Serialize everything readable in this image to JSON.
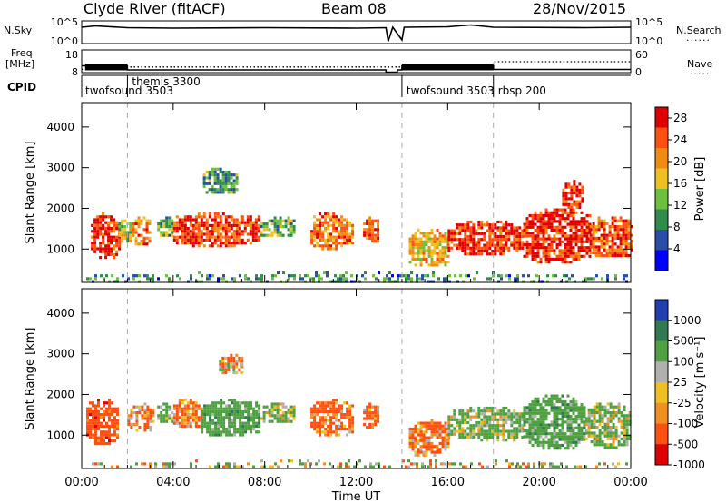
{
  "header": {
    "station": "Clyde River (fitACF)",
    "beam": "Beam 08",
    "date": "28/Nov/2015"
  },
  "noise_panel": {
    "left_label": "N.Sky",
    "right_label": "N.Search",
    "tick_top": "10^5",
    "tick_bottom": "10^0",
    "right_legend_dots": "......"
  },
  "freq_panel": {
    "left_label_1": "Freq",
    "left_label_2": "[MHz]",
    "left_tick_top": "18",
    "left_tick_bottom": "8",
    "right_tick_top": "60",
    "right_tick_bottom": "0",
    "right_label": "Nave",
    "right_legend_dots": "....."
  },
  "cpid": {
    "label": "CPID",
    "segments": [
      {
        "name": "twofsound 3503",
        "start_hour": 0.0
      },
      {
        "name": "themis 3300",
        "start_hour": 2.0
      },
      {
        "name": "twofsound 3503",
        "start_hour": 14.0
      },
      {
        "name": "rbsp 200",
        "start_hour": 18.0
      }
    ]
  },
  "chart_data": [
    {
      "type": "heatmap",
      "name": "power",
      "ylabel": "Slant Range [km]",
      "y_ticks": [
        1000,
        2000,
        3000,
        4000
      ],
      "ylim": [
        180,
        4600
      ],
      "x_tick_labels": [
        "00:00",
        "04:00",
        "08:00",
        "12:00",
        "16:00",
        "20:00",
        "00:00"
      ],
      "xlim_hours": [
        0,
        24
      ],
      "colorbar": {
        "label": "Power [dB]",
        "ticks": [
          "4",
          "8",
          "12",
          "16",
          "20",
          "24",
          "28"
        ],
        "range": [
          0,
          30
        ],
        "colors": [
          "#0000ff",
          "#2a4ea8",
          "#2f8c4a",
          "#6cc040",
          "#f0c020",
          "#f08c10",
          "#ff5010",
          "#e00000"
        ]
      },
      "echo_regions": [
        {
          "t0": 0.4,
          "t1": 1.6,
          "r0": 800,
          "r1": 1900,
          "mean": 27
        },
        {
          "t0": 1.6,
          "t1": 2.2,
          "r0": 1200,
          "r1": 1800,
          "mean": 14
        },
        {
          "t0": 2.2,
          "t1": 3.0,
          "r0": 1100,
          "r1": 1800,
          "mean": 22
        },
        {
          "t0": 3.3,
          "t1": 4.0,
          "r0": 1300,
          "r1": 1800,
          "mean": 12
        },
        {
          "t0": 4.0,
          "t1": 7.7,
          "r0": 1100,
          "r1": 1900,
          "mean": 25
        },
        {
          "t0": 5.3,
          "t1": 6.8,
          "r0": 2400,
          "r1": 3000,
          "mean": 10
        },
        {
          "t0": 7.8,
          "t1": 9.3,
          "r0": 1300,
          "r1": 1800,
          "mean": 12
        },
        {
          "t0": 10.0,
          "t1": 11.8,
          "r0": 1000,
          "r1": 1900,
          "mean": 22
        },
        {
          "t0": 12.3,
          "t1": 13.0,
          "r0": 1200,
          "r1": 1800,
          "mean": 24
        },
        {
          "t0": 14.3,
          "t1": 16.0,
          "r0": 600,
          "r1": 1500,
          "mean": 18
        },
        {
          "t0": 16.0,
          "t1": 19.3,
          "r0": 900,
          "r1": 1700,
          "mean": 26
        },
        {
          "t0": 19.3,
          "t1": 22.2,
          "r0": 700,
          "r1": 2000,
          "mean": 27
        },
        {
          "t0": 21.0,
          "t1": 21.9,
          "r0": 2000,
          "r1": 2700,
          "mean": 27
        },
        {
          "t0": 22.2,
          "t1": 24.0,
          "r0": 800,
          "r1": 1800,
          "mean": 24
        },
        {
          "t0": 0.2,
          "t1": 23.8,
          "r0": 200,
          "r1": 450,
          "mean": 9
        }
      ]
    },
    {
      "type": "heatmap",
      "name": "velocity",
      "ylabel": "Slant Range [km]",
      "y_ticks": [
        1000,
        2000,
        3000,
        4000
      ],
      "ylim": [
        180,
        4600
      ],
      "x_tick_labels": [
        "00:00",
        "04:00",
        "08:00",
        "12:00",
        "16:00",
        "20:00",
        "00:00"
      ],
      "xlim_hours": [
        0,
        24
      ],
      "xlabel": "Time UT",
      "colorbar": {
        "label": "Velocity [m s⁻¹]",
        "ticks": [
          "1000",
          "500",
          "100",
          "25",
          "-25",
          "-100",
          "-500",
          "-1000"
        ],
        "colors": [
          "#2040b0",
          "#2f7a50",
          "#4fa040",
          "#b0b0b0",
          "#f0c020",
          "#f09020",
          "#ff5010",
          "#e00000"
        ]
      },
      "echo_regions": [
        {
          "t0": 0.2,
          "t1": 1.6,
          "r0": 800,
          "r1": 1900,
          "mean": -300
        },
        {
          "t0": 2.0,
          "t1": 3.1,
          "r0": 1100,
          "r1": 1800,
          "mean": -150
        },
        {
          "t0": 3.3,
          "t1": 4.0,
          "r0": 1300,
          "r1": 1800,
          "mean": 200
        },
        {
          "t0": 4.0,
          "t1": 5.2,
          "r0": 1200,
          "r1": 1900,
          "mean": -150
        },
        {
          "t0": 5.2,
          "t1": 7.8,
          "r0": 1000,
          "r1": 1900,
          "mean": 300
        },
        {
          "t0": 6.0,
          "t1": 7.0,
          "r0": 2500,
          "r1": 3000,
          "mean": -100
        },
        {
          "t0": 7.8,
          "t1": 9.3,
          "r0": 1300,
          "r1": 1800,
          "mean": 150
        },
        {
          "t0": 10.0,
          "t1": 11.8,
          "r0": 1000,
          "r1": 1900,
          "mean": -200
        },
        {
          "t0": 12.3,
          "t1": 13.0,
          "r0": 1200,
          "r1": 1800,
          "mean": -200
        },
        {
          "t0": 14.3,
          "t1": 16.0,
          "r0": 500,
          "r1": 1400,
          "mean": -150
        },
        {
          "t0": 16.0,
          "t1": 19.3,
          "r0": 900,
          "r1": 1700,
          "mean": 150
        },
        {
          "t0": 19.3,
          "t1": 22.0,
          "r0": 700,
          "r1": 2000,
          "mean": 300
        },
        {
          "t0": 22.0,
          "t1": 24.0,
          "r0": 700,
          "r1": 1800,
          "mean": 150
        },
        {
          "t0": 0.2,
          "t1": 23.8,
          "r0": 200,
          "r1": 400,
          "mean": 30
        }
      ]
    },
    {
      "type": "line",
      "name": "noise",
      "ylim_log10": [
        0,
        5
      ],
      "series": [
        {
          "points": [
            [
              0,
              3.6
            ],
            [
              0.6,
              3.9
            ],
            [
              2,
              3.5
            ],
            [
              4,
              3.4
            ],
            [
              8,
              3.5
            ],
            [
              12,
              3.4
            ],
            [
              13.3,
              3.5
            ],
            [
              13.4,
              0.5
            ],
            [
              13.6,
              3.6
            ],
            [
              14.0,
              0.8
            ],
            [
              14.1,
              3.6
            ],
            [
              16,
              3.7
            ],
            [
              17,
              4.1
            ],
            [
              18,
              3.6
            ],
            [
              22,
              3.5
            ],
            [
              24,
              3.6
            ]
          ]
        }
      ]
    },
    {
      "type": "line",
      "name": "frequency",
      "ylim": [
        8,
        18
      ],
      "series": [
        {
          "points": [
            [
              0,
              11.0
            ],
            [
              2.0,
              11.0
            ],
            [
              2.0,
              9.2
            ],
            [
              13.3,
              9.2
            ],
            [
              13.3,
              8.2
            ],
            [
              13.8,
              8.2
            ],
            [
              13.8,
              9.2
            ],
            [
              14.0,
              9.2
            ],
            [
              14.0,
              11.0
            ],
            [
              18.0,
              11.0
            ],
            [
              18.0,
              9.4
            ],
            [
              24,
              9.4
            ]
          ]
        },
        {
          "points": [
            [
              0,
              9.5
            ],
            [
              2.0,
              9.5
            ],
            [
              2.0,
              10.5
            ],
            [
              13.3,
              10.5
            ],
            [
              14.0,
              10.5
            ],
            [
              14.0,
              9.5
            ],
            [
              18.0,
              9.5
            ],
            [
              18.0,
              12.8
            ],
            [
              24,
              12.8
            ]
          ]
        }
      ]
    }
  ]
}
